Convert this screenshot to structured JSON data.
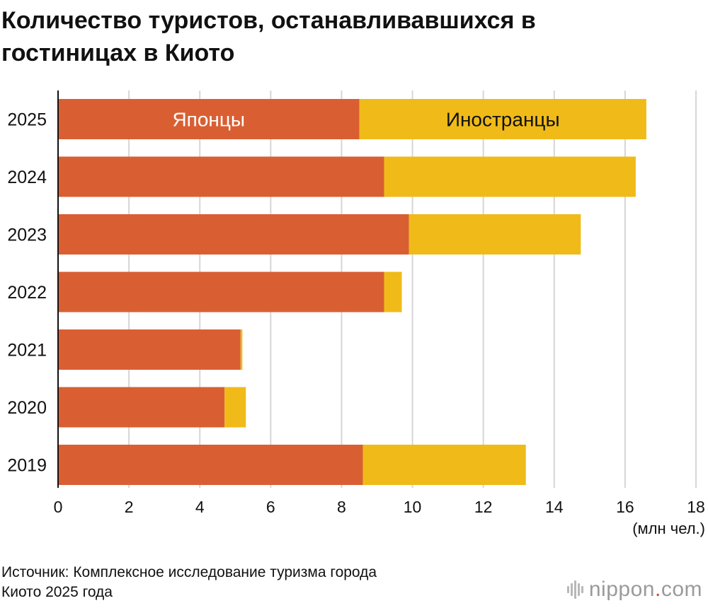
{
  "title_lines": [
    "Количество туристов, останавливавшихся в",
    "гостиницах в Киото"
  ],
  "source_lines": [
    "Источник: Комплексное исследование туризма города",
    "Киото 2025 года"
  ],
  "brand": {
    "name": "nippon",
    "dot": ".",
    "tld": "com"
  },
  "colors": {
    "japanese": "#d95f33",
    "foreign": "#f0bb18",
    "grid": "#d6d6d6",
    "axis": "#111111"
  },
  "chart_data": {
    "type": "bar",
    "orientation": "horizontal",
    "stacked": true,
    "categories": [
      "2025",
      "2024",
      "2023",
      "2022",
      "2021",
      "2020",
      "2019"
    ],
    "series": [
      {
        "name": "Японцы",
        "values": [
          8.5,
          9.2,
          9.9,
          9.2,
          5.15,
          4.7,
          8.6
        ]
      },
      {
        "name": "Иностранцы",
        "values": [
          8.1,
          7.1,
          4.85,
          0.5,
          0.05,
          0.6,
          4.6
        ]
      }
    ],
    "xlim": [
      0,
      18
    ],
    "xticks": [
      "0",
      "2",
      "4",
      "6",
      "8",
      "10",
      "12",
      "14",
      "16",
      "18"
    ],
    "xlabel": "(млн чел.)",
    "grid": true,
    "legend": "inside-first-bar"
  }
}
